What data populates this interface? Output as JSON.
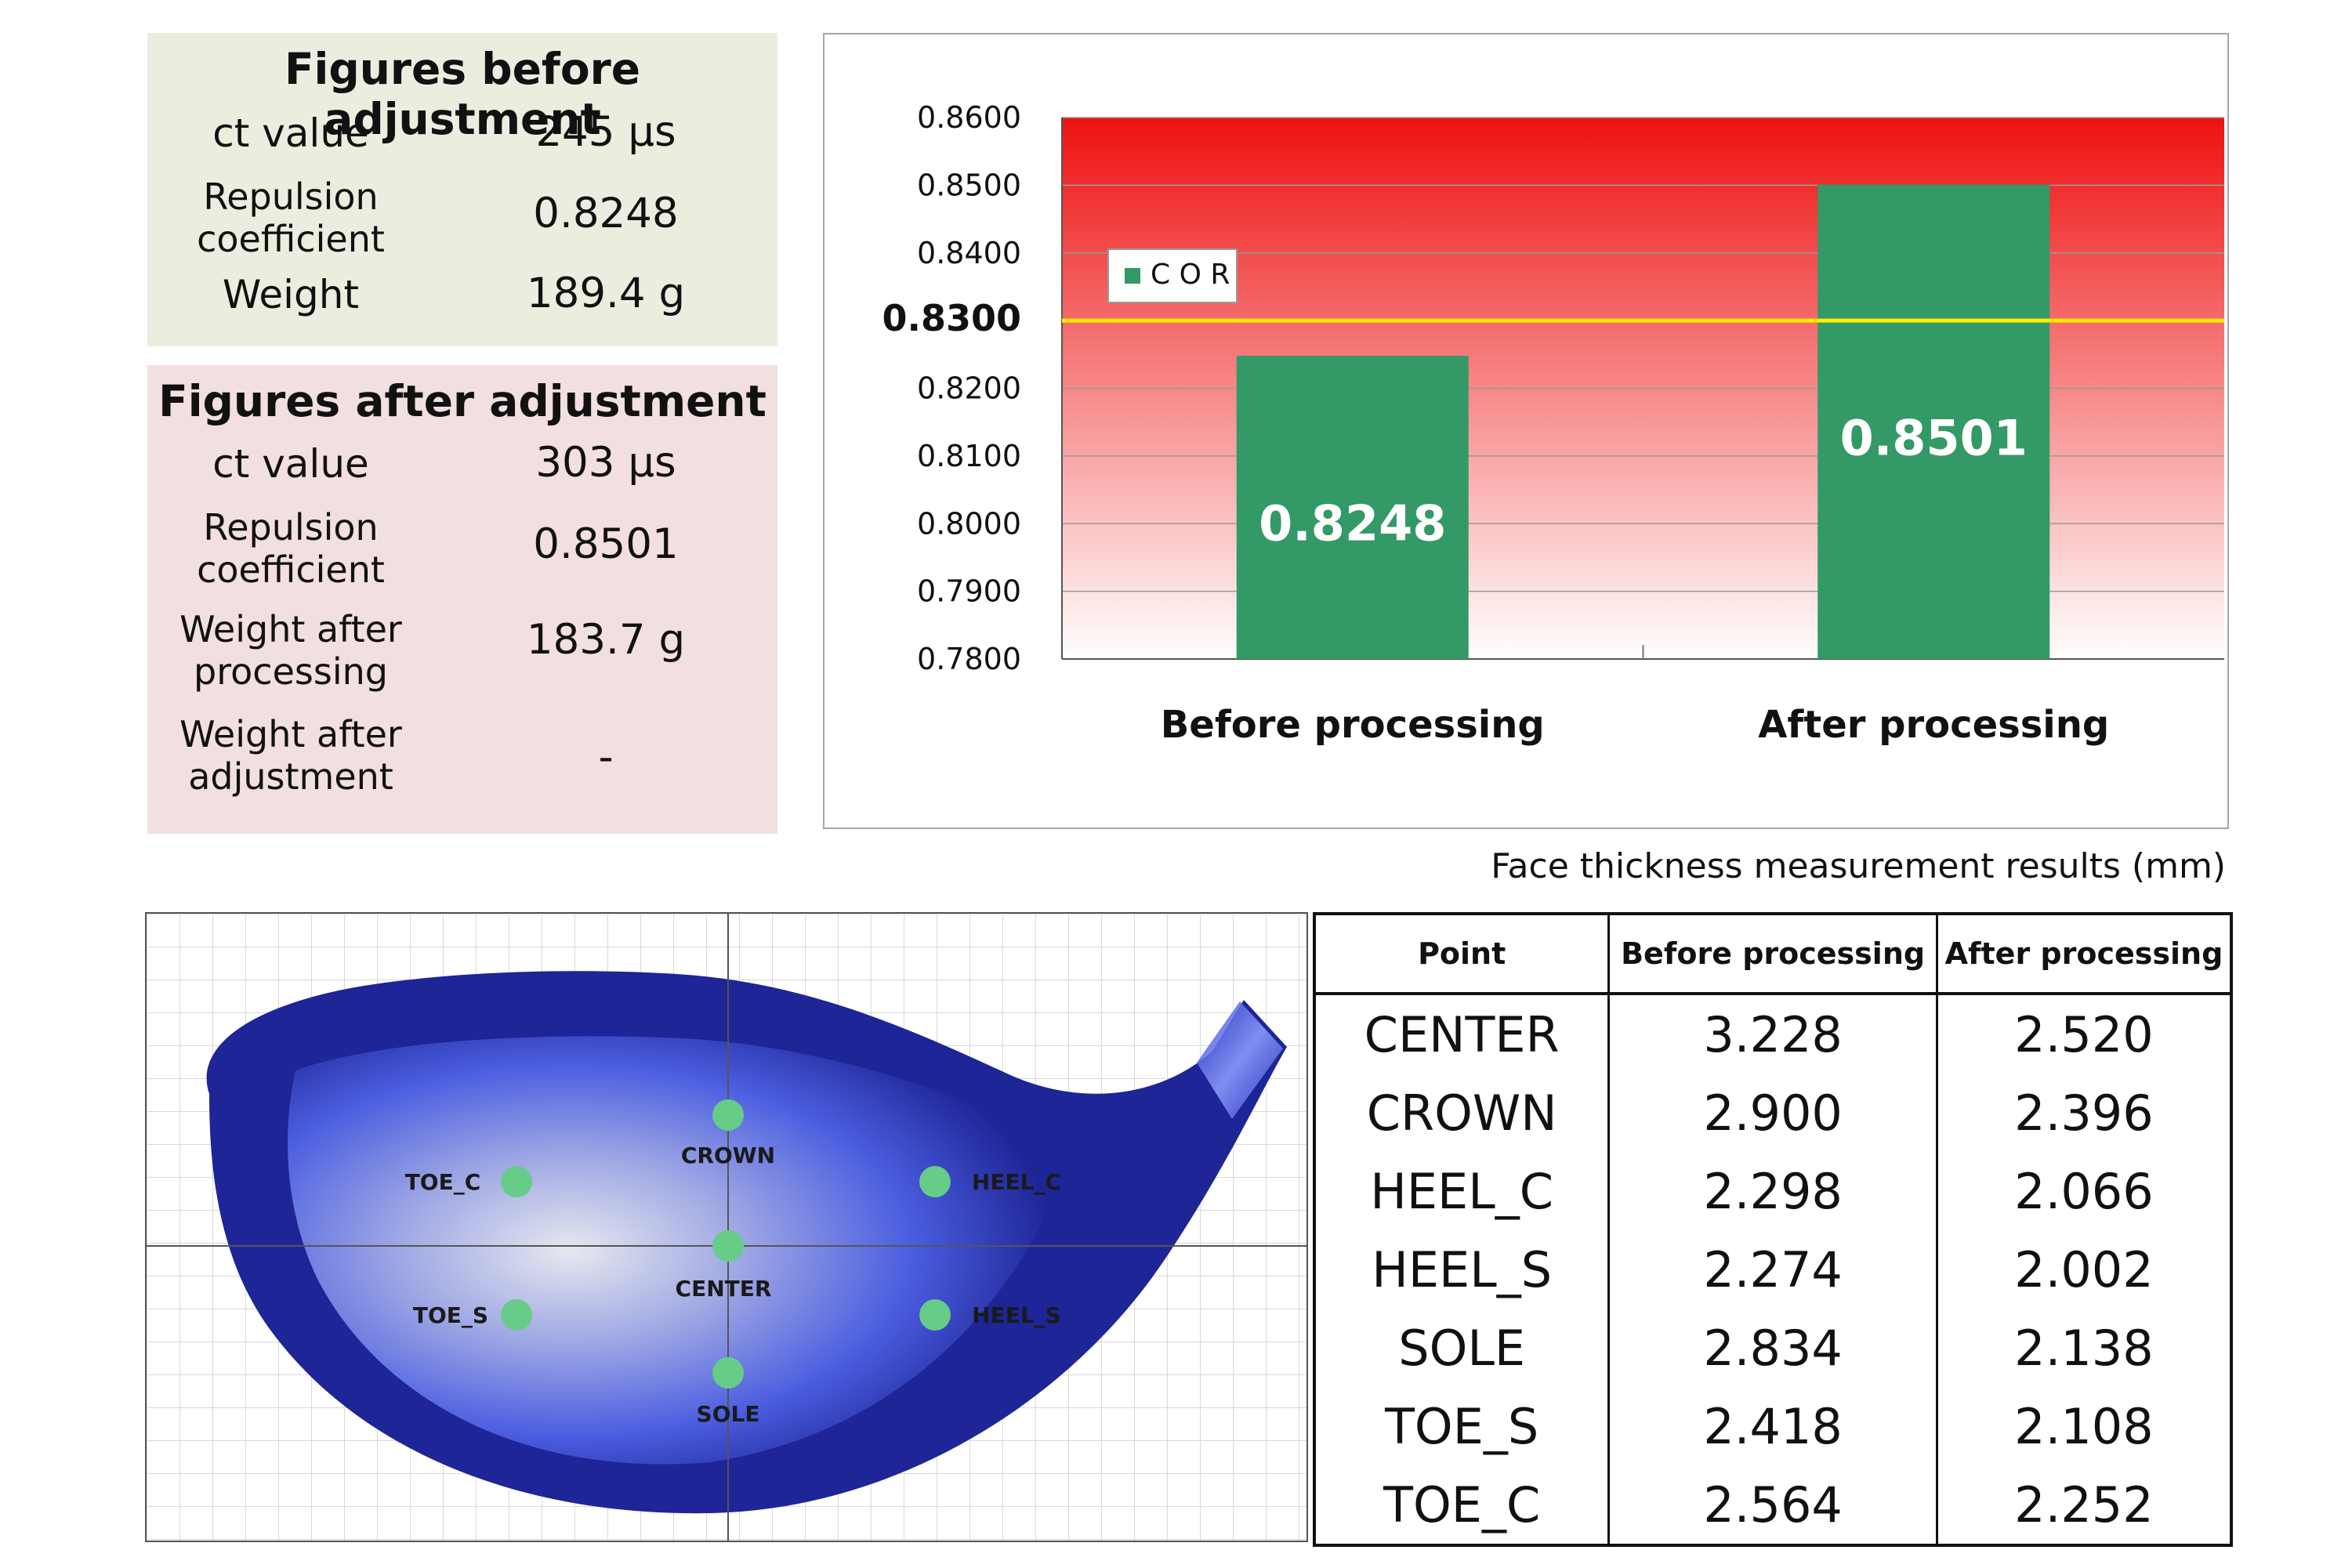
{
  "before_panel": {
    "title": "Figures before adjustment",
    "rows": [
      {
        "label": "ct value",
        "value": "245 µs"
      },
      {
        "label_lines": [
          "Repulsion",
          "coefficient"
        ],
        "value": "0.8248"
      },
      {
        "label": "Weight",
        "value": "189.4 g"
      }
    ]
  },
  "after_panel": {
    "title": "Figures after adjustment",
    "rows": [
      {
        "label": "ct value",
        "value": "303 µs"
      },
      {
        "label_lines": [
          "Repulsion",
          "coefficient"
        ],
        "value": "0.8501"
      },
      {
        "label_lines": [
          "Weight after",
          "processing"
        ],
        "value": "183.7 g"
      },
      {
        "label_lines": [
          "Weight after",
          "adjustment"
        ],
        "value": "-"
      }
    ]
  },
  "chart_data": {
    "type": "bar",
    "categories": [
      "Before processing",
      "After processing"
    ],
    "series": [
      {
        "name": "COR",
        "values": [
          0.8248,
          0.8501
        ],
        "color": "#339966"
      }
    ],
    "data_labels": [
      "0.8248",
      "0.8501"
    ],
    "ylim": [
      0.78,
      0.86
    ],
    "yticks": [
      "0.7800",
      "0.7900",
      "0.8000",
      "0.8100",
      "0.8200",
      "0.8300",
      "0.8400",
      "0.8500",
      "0.8600"
    ],
    "reference_line": {
      "value": 0.83,
      "label": "0.8300",
      "color": "#ffee00"
    },
    "legend": {
      "label": "C O R",
      "position": "top-left"
    },
    "background_gradient": [
      "#ee1111",
      "#ffffff"
    ],
    "grid": true
  },
  "face_diagram": {
    "points": [
      {
        "id": "crown",
        "label": "CROWN"
      },
      {
        "id": "toe-c",
        "label": "TOE_C"
      },
      {
        "id": "heel-c",
        "label": "HEEL_C"
      },
      {
        "id": "center",
        "label": "CENTER"
      },
      {
        "id": "toe-s",
        "label": "TOE_S"
      },
      {
        "id": "heel-s",
        "label": "HEEL_S"
      },
      {
        "id": "sole",
        "label": "SOLE"
      }
    ],
    "colors": {
      "face": "#2a35c8",
      "point": "#66cc88",
      "grid": "#d9d9d9"
    }
  },
  "thickness_table": {
    "caption": "Face thickness measurement results (mm)",
    "headers": [
      "Point",
      "Before processing",
      "After processing"
    ],
    "rows": [
      [
        "CENTER",
        "3.228",
        "2.520"
      ],
      [
        "CROWN",
        "2.900",
        "2.396"
      ],
      [
        "HEEL_C",
        "2.298",
        "2.066"
      ],
      [
        "HEEL_S",
        "2.274",
        "2.002"
      ],
      [
        "SOLE",
        "2.834",
        "2.138"
      ],
      [
        "TOE_S",
        "2.418",
        "2.108"
      ],
      [
        "TOE_C",
        "2.564",
        "2.252"
      ]
    ]
  }
}
